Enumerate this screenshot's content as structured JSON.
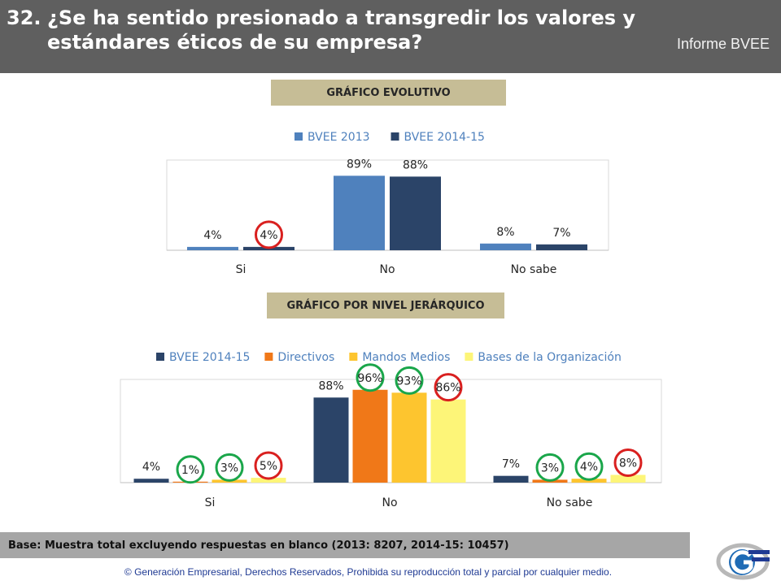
{
  "header": {
    "number": "32.",
    "title_line1": "¿Se ha sentido presionado a transgredir los valores y",
    "title_line2": "estándares éticos de su empresa?",
    "report": "Informe BVEE"
  },
  "sections": {
    "evolutivo": "GRÁFICO EVOLUTIVO",
    "jerarquico": "GRÁFICO POR NIVEL JERÁRQUICO"
  },
  "colors": {
    "bvee2013": "#4f81bd",
    "bvee201415": "#2b4468",
    "directivos": "#f07818",
    "mandos": "#fdc52f",
    "bases": "#fdf578",
    "circle_red": "#d9201f",
    "circle_green": "#1aa64a"
  },
  "chart_data": [
    {
      "type": "bar",
      "categories": [
        "Si",
        "No",
        "No sabe"
      ],
      "series": [
        {
          "name": "BVEE 2013",
          "values": [
            4,
            89,
            8
          ],
          "labels": [
            "4%",
            "89%",
            "8%"
          ],
          "color": "#4f81bd"
        },
        {
          "name": "BVEE 2014-15",
          "values": [
            4,
            88,
            7
          ],
          "labels": [
            "4%",
            "88%",
            "7%"
          ],
          "color": "#2b4468"
        }
      ],
      "ylim": [
        0,
        100
      ],
      "legend": "top",
      "highlights": [
        {
          "series": 1,
          "category": 0,
          "color": "red"
        }
      ]
    },
    {
      "type": "bar",
      "categories": [
        "Si",
        "No",
        "No sabe"
      ],
      "series": [
        {
          "name": "BVEE 2014-15",
          "values": [
            4,
            88,
            7
          ],
          "labels": [
            "4%",
            "88%",
            "7%"
          ],
          "color": "#2b4468"
        },
        {
          "name": "Directivos",
          "values": [
            1,
            96,
            3
          ],
          "labels": [
            "1%",
            "96%",
            "3%"
          ],
          "color": "#f07818"
        },
        {
          "name": "Mandos Medios",
          "values": [
            3,
            93,
            4
          ],
          "labels": [
            "3%",
            "93%",
            "4%"
          ],
          "color": "#fdc52f"
        },
        {
          "name": "Bases de la Organización",
          "values": [
            5,
            86,
            8
          ],
          "labels": [
            "5%",
            "86%",
            "8%"
          ],
          "color": "#fdf578"
        }
      ],
      "ylim": [
        0,
        100
      ],
      "legend": "top",
      "highlights": [
        {
          "series": 1,
          "category": 0,
          "color": "green"
        },
        {
          "series": 2,
          "category": 0,
          "color": "green"
        },
        {
          "series": 3,
          "category": 0,
          "color": "red"
        },
        {
          "series": 1,
          "category": 1,
          "color": "green"
        },
        {
          "series": 2,
          "category": 1,
          "color": "green"
        },
        {
          "series": 3,
          "category": 1,
          "color": "red"
        },
        {
          "series": 1,
          "category": 2,
          "color": "green"
        },
        {
          "series": 2,
          "category": 2,
          "color": "green"
        },
        {
          "series": 3,
          "category": 2,
          "color": "red"
        }
      ]
    }
  ],
  "footer": {
    "base": "Base:  Muestra total excluyendo respuestas en blanco (2013: 8207, 2014-15: 10457)",
    "copyright": "© Generación Empresarial, Derechos Reservados, Prohibida su reproducción total y parcial por cualquier medio."
  },
  "logo": {
    "icon": "ge-logo-icon"
  }
}
